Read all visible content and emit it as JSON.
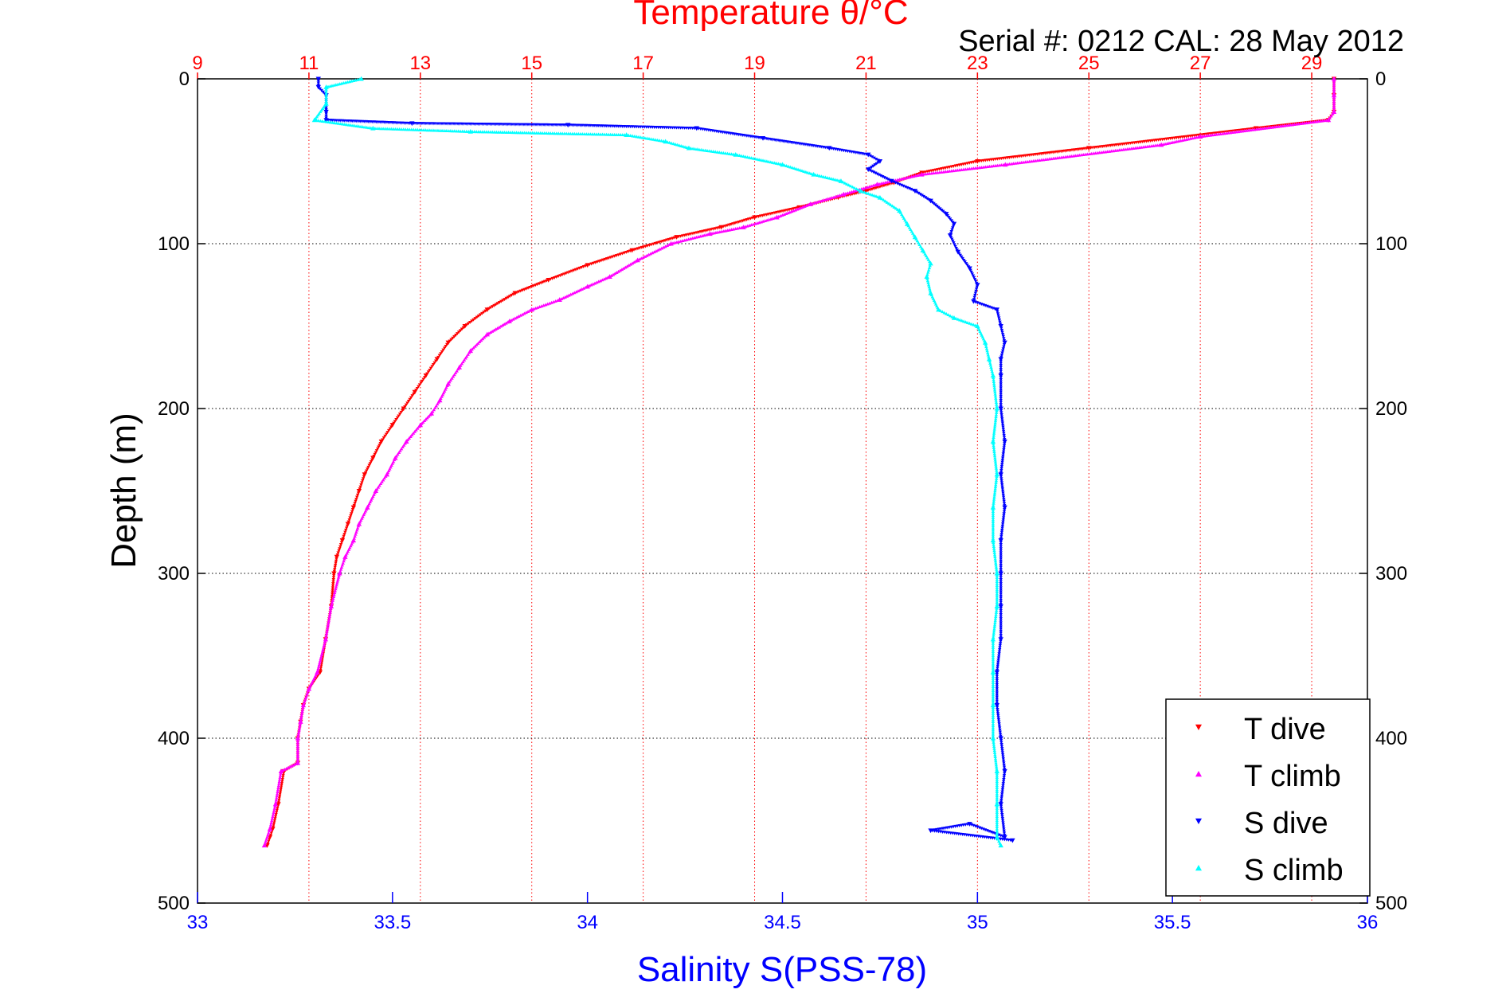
{
  "chart_data": {
    "type": "scatter",
    "title": "Temperature θ/°C",
    "subtitle": "Serial #: 0212  CAL: 28 May 2012",
    "ylabel": "Depth (m)",
    "x2label": "Salinity S(PSS-78)",
    "y_reversed": true,
    "ylim": [
      0,
      500
    ],
    "y_ticks": [
      0,
      100,
      200,
      300,
      400,
      500
    ],
    "xlim_temperature": [
      9,
      30
    ],
    "x_ticks_temperature": [
      9,
      11,
      13,
      15,
      17,
      19,
      21,
      23,
      25,
      27,
      29
    ],
    "xlim_salinity": [
      33,
      36
    ],
    "x_ticks_salinity": [
      33,
      33.5,
      34,
      34.5,
      35,
      35.5,
      36
    ],
    "grid": true,
    "legend_position": "bottom-right",
    "series": [
      {
        "name": "T dive",
        "axis": "temperature",
        "marker": "triangle-down",
        "color": "#ff0000",
        "points": [
          [
            29.4,
            0
          ],
          [
            29.4,
            10
          ],
          [
            29.4,
            20
          ],
          [
            29.3,
            25
          ],
          [
            28,
            30
          ],
          [
            25,
            42
          ],
          [
            23,
            50
          ],
          [
            22,
            57
          ],
          [
            21.5,
            63
          ],
          [
            21,
            68
          ],
          [
            20.5,
            72
          ],
          [
            19.8,
            78
          ],
          [
            19,
            84
          ],
          [
            18.4,
            90
          ],
          [
            17.6,
            96
          ],
          [
            16.8,
            104
          ],
          [
            16,
            113
          ],
          [
            15.3,
            122
          ],
          [
            14.7,
            130
          ],
          [
            14.2,
            140
          ],
          [
            13.8,
            150
          ],
          [
            13.5,
            160
          ],
          [
            13.3,
            170
          ],
          [
            13.1,
            180
          ],
          [
            12.9,
            190
          ],
          [
            12.7,
            200
          ],
          [
            12.5,
            210
          ],
          [
            12.3,
            220
          ],
          [
            12.15,
            230
          ],
          [
            12.0,
            240
          ],
          [
            11.9,
            250
          ],
          [
            11.8,
            260
          ],
          [
            11.7,
            270
          ],
          [
            11.6,
            280
          ],
          [
            11.5,
            290
          ],
          [
            11.45,
            300
          ],
          [
            11.4,
            320
          ],
          [
            11.3,
            340
          ],
          [
            11.2,
            360
          ],
          [
            11.0,
            370
          ],
          [
            10.9,
            380
          ],
          [
            10.85,
            390
          ],
          [
            10.8,
            400
          ],
          [
            10.8,
            415
          ],
          [
            10.55,
            420
          ],
          [
            10.45,
            440
          ],
          [
            10.35,
            455
          ],
          [
            10.3,
            460
          ],
          [
            10.25,
            465
          ]
        ]
      },
      {
        "name": "T climb",
        "axis": "temperature",
        "marker": "triangle-up",
        "color": "#ff00ff",
        "points": [
          [
            29.4,
            0
          ],
          [
            29.4,
            10
          ],
          [
            29.4,
            20
          ],
          [
            29.3,
            25
          ],
          [
            27,
            35
          ],
          [
            26.3,
            40
          ],
          [
            23.5,
            52
          ],
          [
            22,
            58
          ],
          [
            21.2,
            64
          ],
          [
            20.6,
            70
          ],
          [
            20,
            76
          ],
          [
            19.4,
            84
          ],
          [
            18.8,
            90
          ],
          [
            18.2,
            94
          ],
          [
            17.5,
            100
          ],
          [
            16.9,
            110
          ],
          [
            16.4,
            120
          ],
          [
            16.0,
            126
          ],
          [
            15.5,
            134
          ],
          [
            15.0,
            140
          ],
          [
            14.6,
            147
          ],
          [
            14.2,
            155
          ],
          [
            13.9,
            165
          ],
          [
            13.7,
            175
          ],
          [
            13.5,
            185
          ],
          [
            13.35,
            195
          ],
          [
            13.2,
            203
          ],
          [
            13.0,
            210
          ],
          [
            12.75,
            220
          ],
          [
            12.55,
            230
          ],
          [
            12.4,
            240
          ],
          [
            12.2,
            250
          ],
          [
            12.05,
            260
          ],
          [
            11.9,
            270
          ],
          [
            11.8,
            280
          ],
          [
            11.65,
            290
          ],
          [
            11.55,
            300
          ],
          [
            11.4,
            320
          ],
          [
            11.3,
            340
          ],
          [
            11.15,
            360
          ],
          [
            11.0,
            370
          ],
          [
            10.9,
            380
          ],
          [
            10.85,
            390
          ],
          [
            10.8,
            400
          ],
          [
            10.8,
            415
          ],
          [
            10.5,
            420
          ],
          [
            10.4,
            440
          ],
          [
            10.3,
            455
          ],
          [
            10.2,
            465
          ]
        ]
      },
      {
        "name": "S dive",
        "axis": "salinity",
        "marker": "triangle-down",
        "color": "#0000ff",
        "points": [
          [
            33.31,
            0
          ],
          [
            33.31,
            5
          ],
          [
            33.33,
            10
          ],
          [
            33.33,
            20
          ],
          [
            33.33,
            25
          ],
          [
            33.55,
            27
          ],
          [
            33.95,
            28
          ],
          [
            34.28,
            30
          ],
          [
            34.45,
            36
          ],
          [
            34.62,
            42
          ],
          [
            34.72,
            46
          ],
          [
            34.75,
            50
          ],
          [
            34.72,
            55
          ],
          [
            34.78,
            62
          ],
          [
            34.84,
            68
          ],
          [
            34.88,
            74
          ],
          [
            34.92,
            82
          ],
          [
            34.94,
            88
          ],
          [
            34.93,
            95
          ],
          [
            34.95,
            105
          ],
          [
            34.98,
            115
          ],
          [
            35.0,
            125
          ],
          [
            34.99,
            135
          ],
          [
            35.05,
            140
          ],
          [
            35.06,
            150
          ],
          [
            35.07,
            160
          ],
          [
            35.06,
            170
          ],
          [
            35.06,
            180
          ],
          [
            35.06,
            200
          ],
          [
            35.07,
            220
          ],
          [
            35.06,
            240
          ],
          [
            35.07,
            260
          ],
          [
            35.06,
            280
          ],
          [
            35.06,
            300
          ],
          [
            35.06,
            320
          ],
          [
            35.06,
            340
          ],
          [
            35.05,
            360
          ],
          [
            35.05,
            380
          ],
          [
            35.06,
            400
          ],
          [
            35.07,
            420
          ],
          [
            35.06,
            440
          ],
          [
            35.07,
            460
          ],
          [
            34.98,
            452
          ],
          [
            34.88,
            456
          ],
          [
            35.09,
            462
          ]
        ]
      },
      {
        "name": "S climb",
        "axis": "salinity",
        "marker": "triangle-up",
        "color": "#00ffff",
        "points": [
          [
            33.42,
            0
          ],
          [
            33.33,
            5
          ],
          [
            33.33,
            15
          ],
          [
            33.3,
            25
          ],
          [
            33.45,
            30
          ],
          [
            33.7,
            32
          ],
          [
            34.1,
            34
          ],
          [
            34.2,
            38
          ],
          [
            34.26,
            42
          ],
          [
            34.38,
            46
          ],
          [
            34.5,
            52
          ],
          [
            34.58,
            58
          ],
          [
            34.65,
            62
          ],
          [
            34.7,
            68
          ],
          [
            34.75,
            72
          ],
          [
            34.8,
            80
          ],
          [
            34.82,
            88
          ],
          [
            34.84,
            96
          ],
          [
            34.86,
            104
          ],
          [
            34.88,
            112
          ],
          [
            34.87,
            120
          ],
          [
            34.88,
            130
          ],
          [
            34.9,
            140
          ],
          [
            34.94,
            145
          ],
          [
            35.0,
            150
          ],
          [
            35.02,
            160
          ],
          [
            35.03,
            170
          ],
          [
            35.04,
            180
          ],
          [
            35.05,
            200
          ],
          [
            35.04,
            220
          ],
          [
            35.05,
            240
          ],
          [
            35.04,
            260
          ],
          [
            35.04,
            280
          ],
          [
            35.05,
            300
          ],
          [
            35.05,
            320
          ],
          [
            35.04,
            340
          ],
          [
            35.04,
            360
          ],
          [
            35.04,
            380
          ],
          [
            35.04,
            400
          ],
          [
            35.05,
            420
          ],
          [
            35.05,
            440
          ],
          [
            35.05,
            460
          ],
          [
            35.06,
            465
          ]
        ]
      }
    ]
  }
}
